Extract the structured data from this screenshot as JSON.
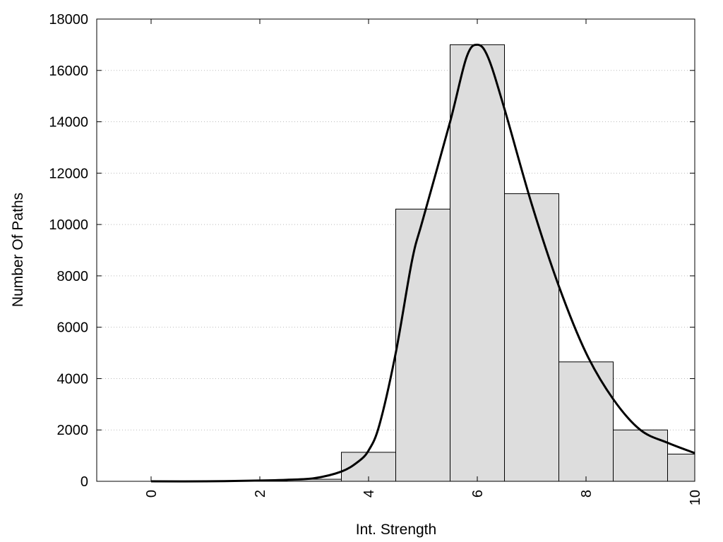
{
  "chart_data": {
    "type": "bar",
    "title": "",
    "xlabel": "Int. Strength",
    "ylabel": "Number Of Paths",
    "xlim": [
      -1,
      10
    ],
    "ylim": [
      0,
      18000
    ],
    "x_ticks": [
      "0",
      "2",
      "4",
      "6",
      "8",
      "10"
    ],
    "y_ticks": [
      "0",
      "2000",
      "4000",
      "6000",
      "8000",
      "10000",
      "12000",
      "14000",
      "16000",
      "18000"
    ],
    "grid": "horizontal-dotted",
    "colors": {
      "bar_fill": "#dddddd",
      "bar_stroke": "#000000",
      "curve": "#000000",
      "grid": "#bbbbbb"
    },
    "bins": [
      {
        "x0": -0.5,
        "x1": 0.5,
        "value": 0
      },
      {
        "x0": 0.5,
        "x1": 1.5,
        "value": 0
      },
      {
        "x0": 1.5,
        "x1": 2.5,
        "value": 10
      },
      {
        "x0": 2.5,
        "x1": 3.5,
        "value": 80
      },
      {
        "x0": 3.5,
        "x1": 4.5,
        "value": 1130
      },
      {
        "x0": 4.5,
        "x1": 5.5,
        "value": 10600
      },
      {
        "x0": 5.5,
        "x1": 6.5,
        "value": 17000
      },
      {
        "x0": 6.5,
        "x1": 7.5,
        "value": 11200
      },
      {
        "x0": 7.5,
        "x1": 8.5,
        "value": 4650
      },
      {
        "x0": 8.5,
        "x1": 9.5,
        "value": 2000
      },
      {
        "x0": 9.5,
        "x1": 10,
        "value": 1060
      }
    ],
    "curve": {
      "x": [
        0,
        1,
        2,
        2.5,
        3,
        3.5,
        3.8,
        4,
        4.2,
        4.5,
        4.8,
        5,
        5.5,
        5.8,
        6,
        6.2,
        6.5,
        7,
        7.5,
        8,
        8.5,
        9,
        9.5,
        10
      ],
      "y": [
        0,
        0,
        30,
        60,
        120,
        380,
        750,
        1200,
        2200,
        5000,
        8600,
        10200,
        14000,
        16500,
        17000,
        16500,
        14500,
        10800,
        7600,
        5000,
        3200,
        2000,
        1500,
        1100
      ]
    }
  }
}
